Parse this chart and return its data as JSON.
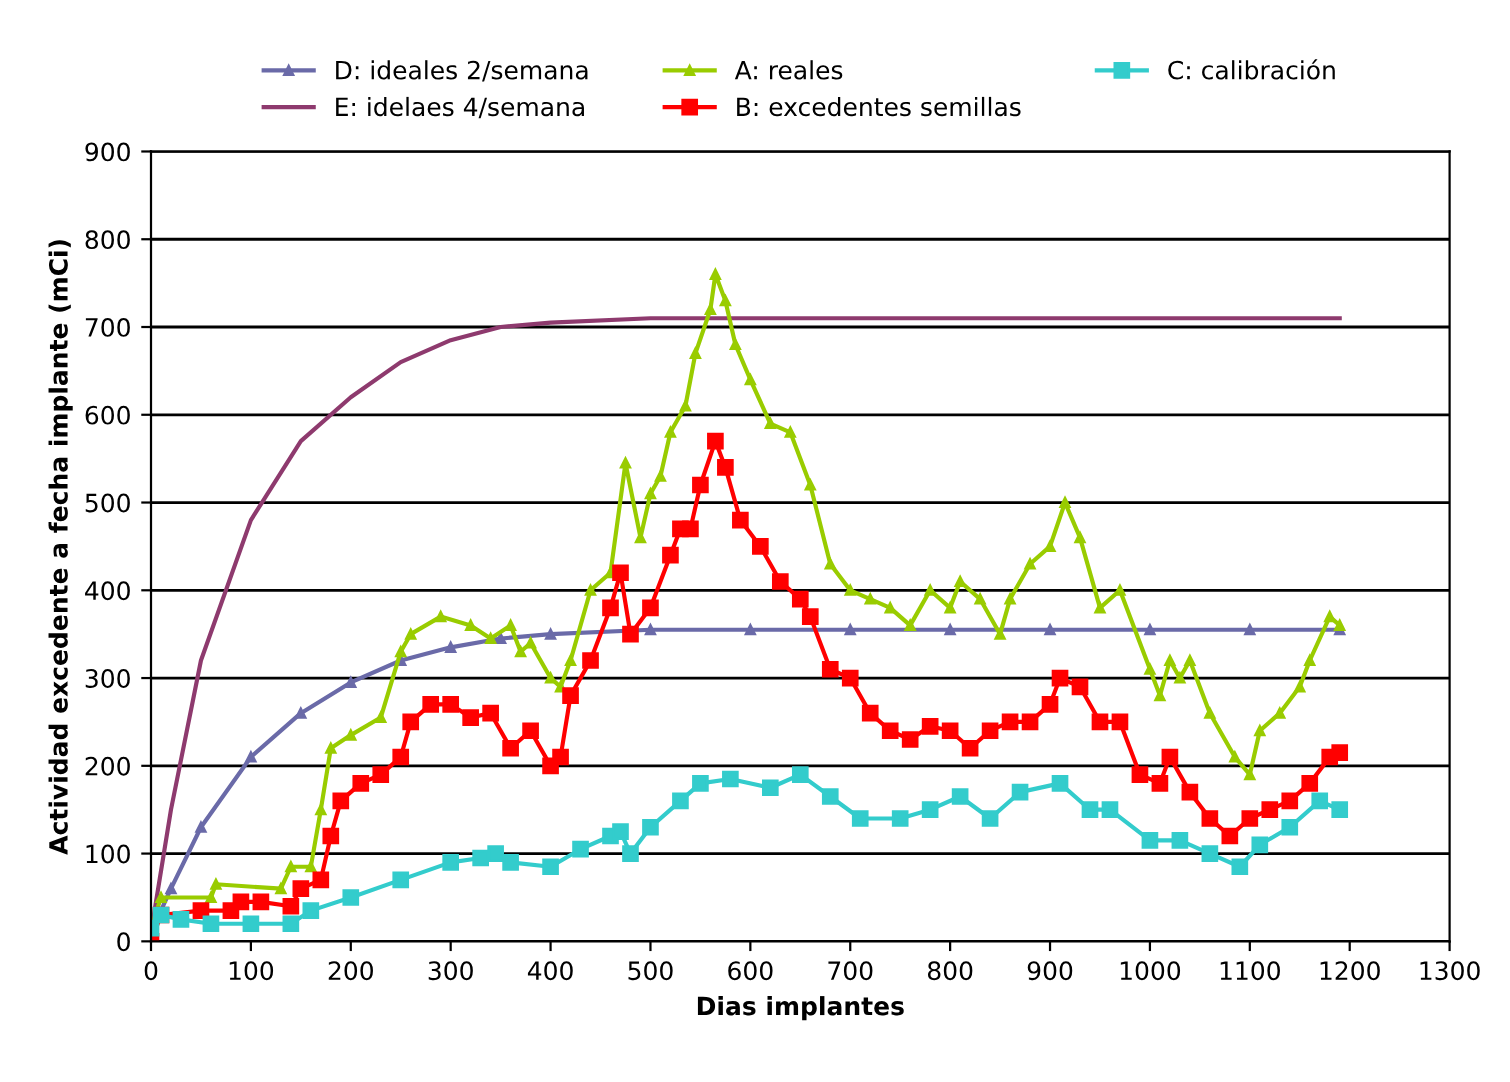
{
  "chart_data": {
    "type": "line",
    "xlabel": "Dias implantes",
    "ylabel": "Actividad excedente a fecha implante (mCi)",
    "xlim": [
      0,
      1300
    ],
    "xticks": [
      0,
      100,
      200,
      300,
      400,
      500,
      600,
      700,
      800,
      900,
      1000,
      1100,
      1200,
      1300
    ],
    "ylim": [
      0,
      900
    ],
    "yticks": [
      0,
      100,
      200,
      300,
      400,
      500,
      600,
      700,
      800,
      900
    ],
    "grid": "y",
    "legend": "top",
    "series": [
      {
        "name": "D: ideales 2/semana",
        "color": "#6a6aa8",
        "marker": "triangle",
        "x": [
          0,
          20,
          50,
          100,
          150,
          200,
          250,
          300,
          350,
          400,
          500,
          600,
          700,
          800,
          900,
          1000,
          1100,
          1190
        ],
        "values": [
          10,
          60,
          130,
          210,
          260,
          295,
          320,
          335,
          345,
          350,
          355,
          355,
          355,
          355,
          355,
          355,
          355,
          355
        ]
      },
      {
        "name": "E: idelaes 4/semana",
        "color": "#8e3a6e",
        "marker": "none",
        "x": [
          0,
          20,
          50,
          100,
          150,
          200,
          250,
          300,
          350,
          400,
          500,
          600,
          700,
          800,
          900,
          1000,
          1100,
          1190
        ],
        "values": [
          10,
          150,
          320,
          480,
          570,
          620,
          660,
          685,
          700,
          705,
          710,
          710,
          710,
          710,
          710,
          710,
          710,
          710
        ]
      },
      {
        "name": "A: reales",
        "color": "#99cc00",
        "marker": "triangle",
        "x": [
          0,
          10,
          60,
          65,
          130,
          140,
          160,
          170,
          180,
          200,
          230,
          250,
          260,
          290,
          320,
          340,
          360,
          370,
          380,
          400,
          410,
          420,
          440,
          460,
          475,
          490,
          500,
          510,
          520,
          535,
          545,
          560,
          565,
          575,
          585,
          600,
          620,
          640,
          660,
          680,
          700,
          720,
          740,
          760,
          780,
          800,
          810,
          830,
          850,
          860,
          880,
          900,
          915,
          930,
          950,
          970,
          1000,
          1010,
          1020,
          1030,
          1040,
          1060,
          1085,
          1100,
          1110,
          1130,
          1150,
          1160,
          1180,
          1190
        ],
        "values": [
          15,
          50,
          50,
          65,
          60,
          85,
          85,
          150,
          220,
          235,
          255,
          330,
          350,
          370,
          360,
          345,
          360,
          330,
          340,
          300,
          290,
          320,
          400,
          420,
          545,
          460,
          510,
          530,
          580,
          610,
          670,
          720,
          760,
          730,
          680,
          640,
          590,
          580,
          520,
          430,
          400,
          390,
          380,
          360,
          400,
          380,
          410,
          390,
          350,
          390,
          430,
          450,
          500,
          460,
          380,
          400,
          310,
          280,
          320,
          300,
          320,
          260,
          210,
          190,
          240,
          260,
          290,
          320,
          370,
          360
        ]
      },
      {
        "name": "B: excedentes semillas",
        "color": "#ff0000",
        "marker": "square",
        "x": [
          0,
          10,
          50,
          80,
          90,
          110,
          140,
          150,
          170,
          180,
          190,
          210,
          230,
          250,
          260,
          280,
          300,
          320,
          340,
          360,
          380,
          400,
          410,
          420,
          440,
          460,
          470,
          480,
          500,
          520,
          530,
          540,
          550,
          565,
          575,
          590,
          610,
          630,
          650,
          660,
          680,
          700,
          720,
          740,
          760,
          780,
          800,
          820,
          840,
          860,
          880,
          900,
          910,
          930,
          950,
          970,
          990,
          1010,
          1020,
          1040,
          1060,
          1080,
          1100,
          1120,
          1140,
          1160,
          1180,
          1190
        ],
        "values": [
          0,
          30,
          35,
          35,
          45,
          45,
          40,
          60,
          70,
          120,
          160,
          180,
          190,
          210,
          250,
          270,
          270,
          255,
          260,
          220,
          240,
          200,
          210,
          280,
          320,
          380,
          420,
          350,
          380,
          440,
          470,
          470,
          520,
          570,
          540,
          480,
          450,
          410,
          390,
          370,
          310,
          300,
          260,
          240,
          230,
          245,
          240,
          220,
          240,
          250,
          250,
          270,
          300,
          290,
          250,
          250,
          190,
          180,
          210,
          170,
          140,
          120,
          140,
          150,
          160,
          180,
          210,
          215
        ]
      },
      {
        "name": "C: calibración",
        "color": "#33cccc",
        "marker": "square",
        "x": [
          0,
          10,
          30,
          60,
          100,
          140,
          160,
          200,
          250,
          300,
          330,
          345,
          360,
          400,
          430,
          460,
          470,
          480,
          500,
          530,
          550,
          580,
          620,
          650,
          680,
          710,
          750,
          780,
          810,
          840,
          870,
          910,
          940,
          960,
          1000,
          1030,
          1060,
          1090,
          1110,
          1140,
          1170,
          1190
        ],
        "values": [
          15,
          30,
          25,
          20,
          20,
          20,
          35,
          50,
          70,
          90,
          95,
          100,
          90,
          85,
          105,
          120,
          125,
          100,
          130,
          160,
          180,
          185,
          175,
          190,
          165,
          140,
          140,
          150,
          165,
          140,
          170,
          180,
          150,
          150,
          115,
          115,
          100,
          85,
          110,
          130,
          160,
          150
        ]
      }
    ]
  }
}
